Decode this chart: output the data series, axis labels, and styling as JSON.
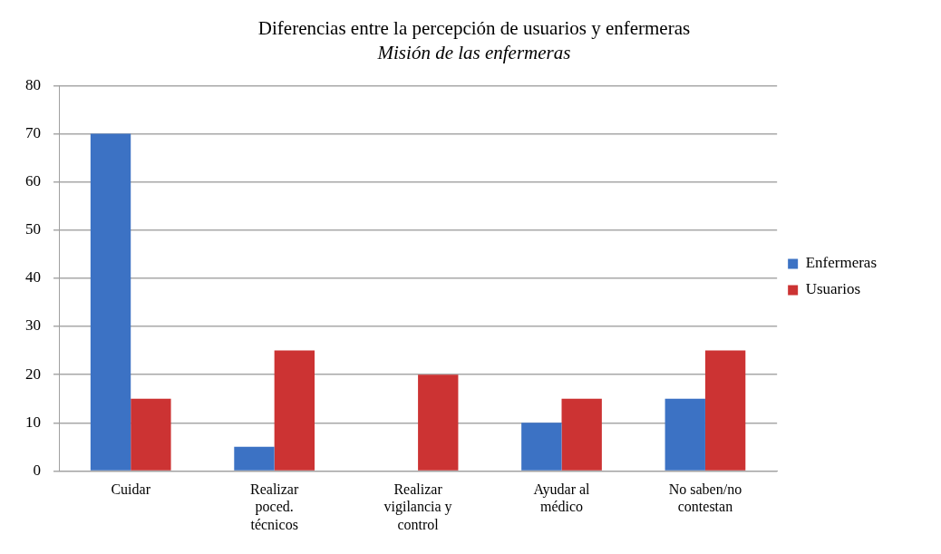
{
  "chart_data": {
    "type": "bar",
    "title": "Diferencias entre la percepción de usuarios y enfermeras",
    "subtitle": "Misión de las enfermeras",
    "categories": [
      "Cuidar",
      "Realizar poced. técnicos",
      "Realizar vigilancia y control",
      "Ayudar al médico",
      "No saben/no contestan"
    ],
    "series": [
      {
        "name": "Enfermeras",
        "color": "#3c72c4",
        "values": [
          70,
          5,
          0,
          10,
          15
        ]
      },
      {
        "name": "Usuarios",
        "color": "#cc3333",
        "values": [
          15,
          25,
          20,
          15,
          25
        ]
      }
    ],
    "ylim": [
      0,
      80
    ],
    "yticks": [
      0,
      10,
      20,
      30,
      40,
      50,
      60,
      70,
      80
    ],
    "grid": "y",
    "legend": "right"
  }
}
